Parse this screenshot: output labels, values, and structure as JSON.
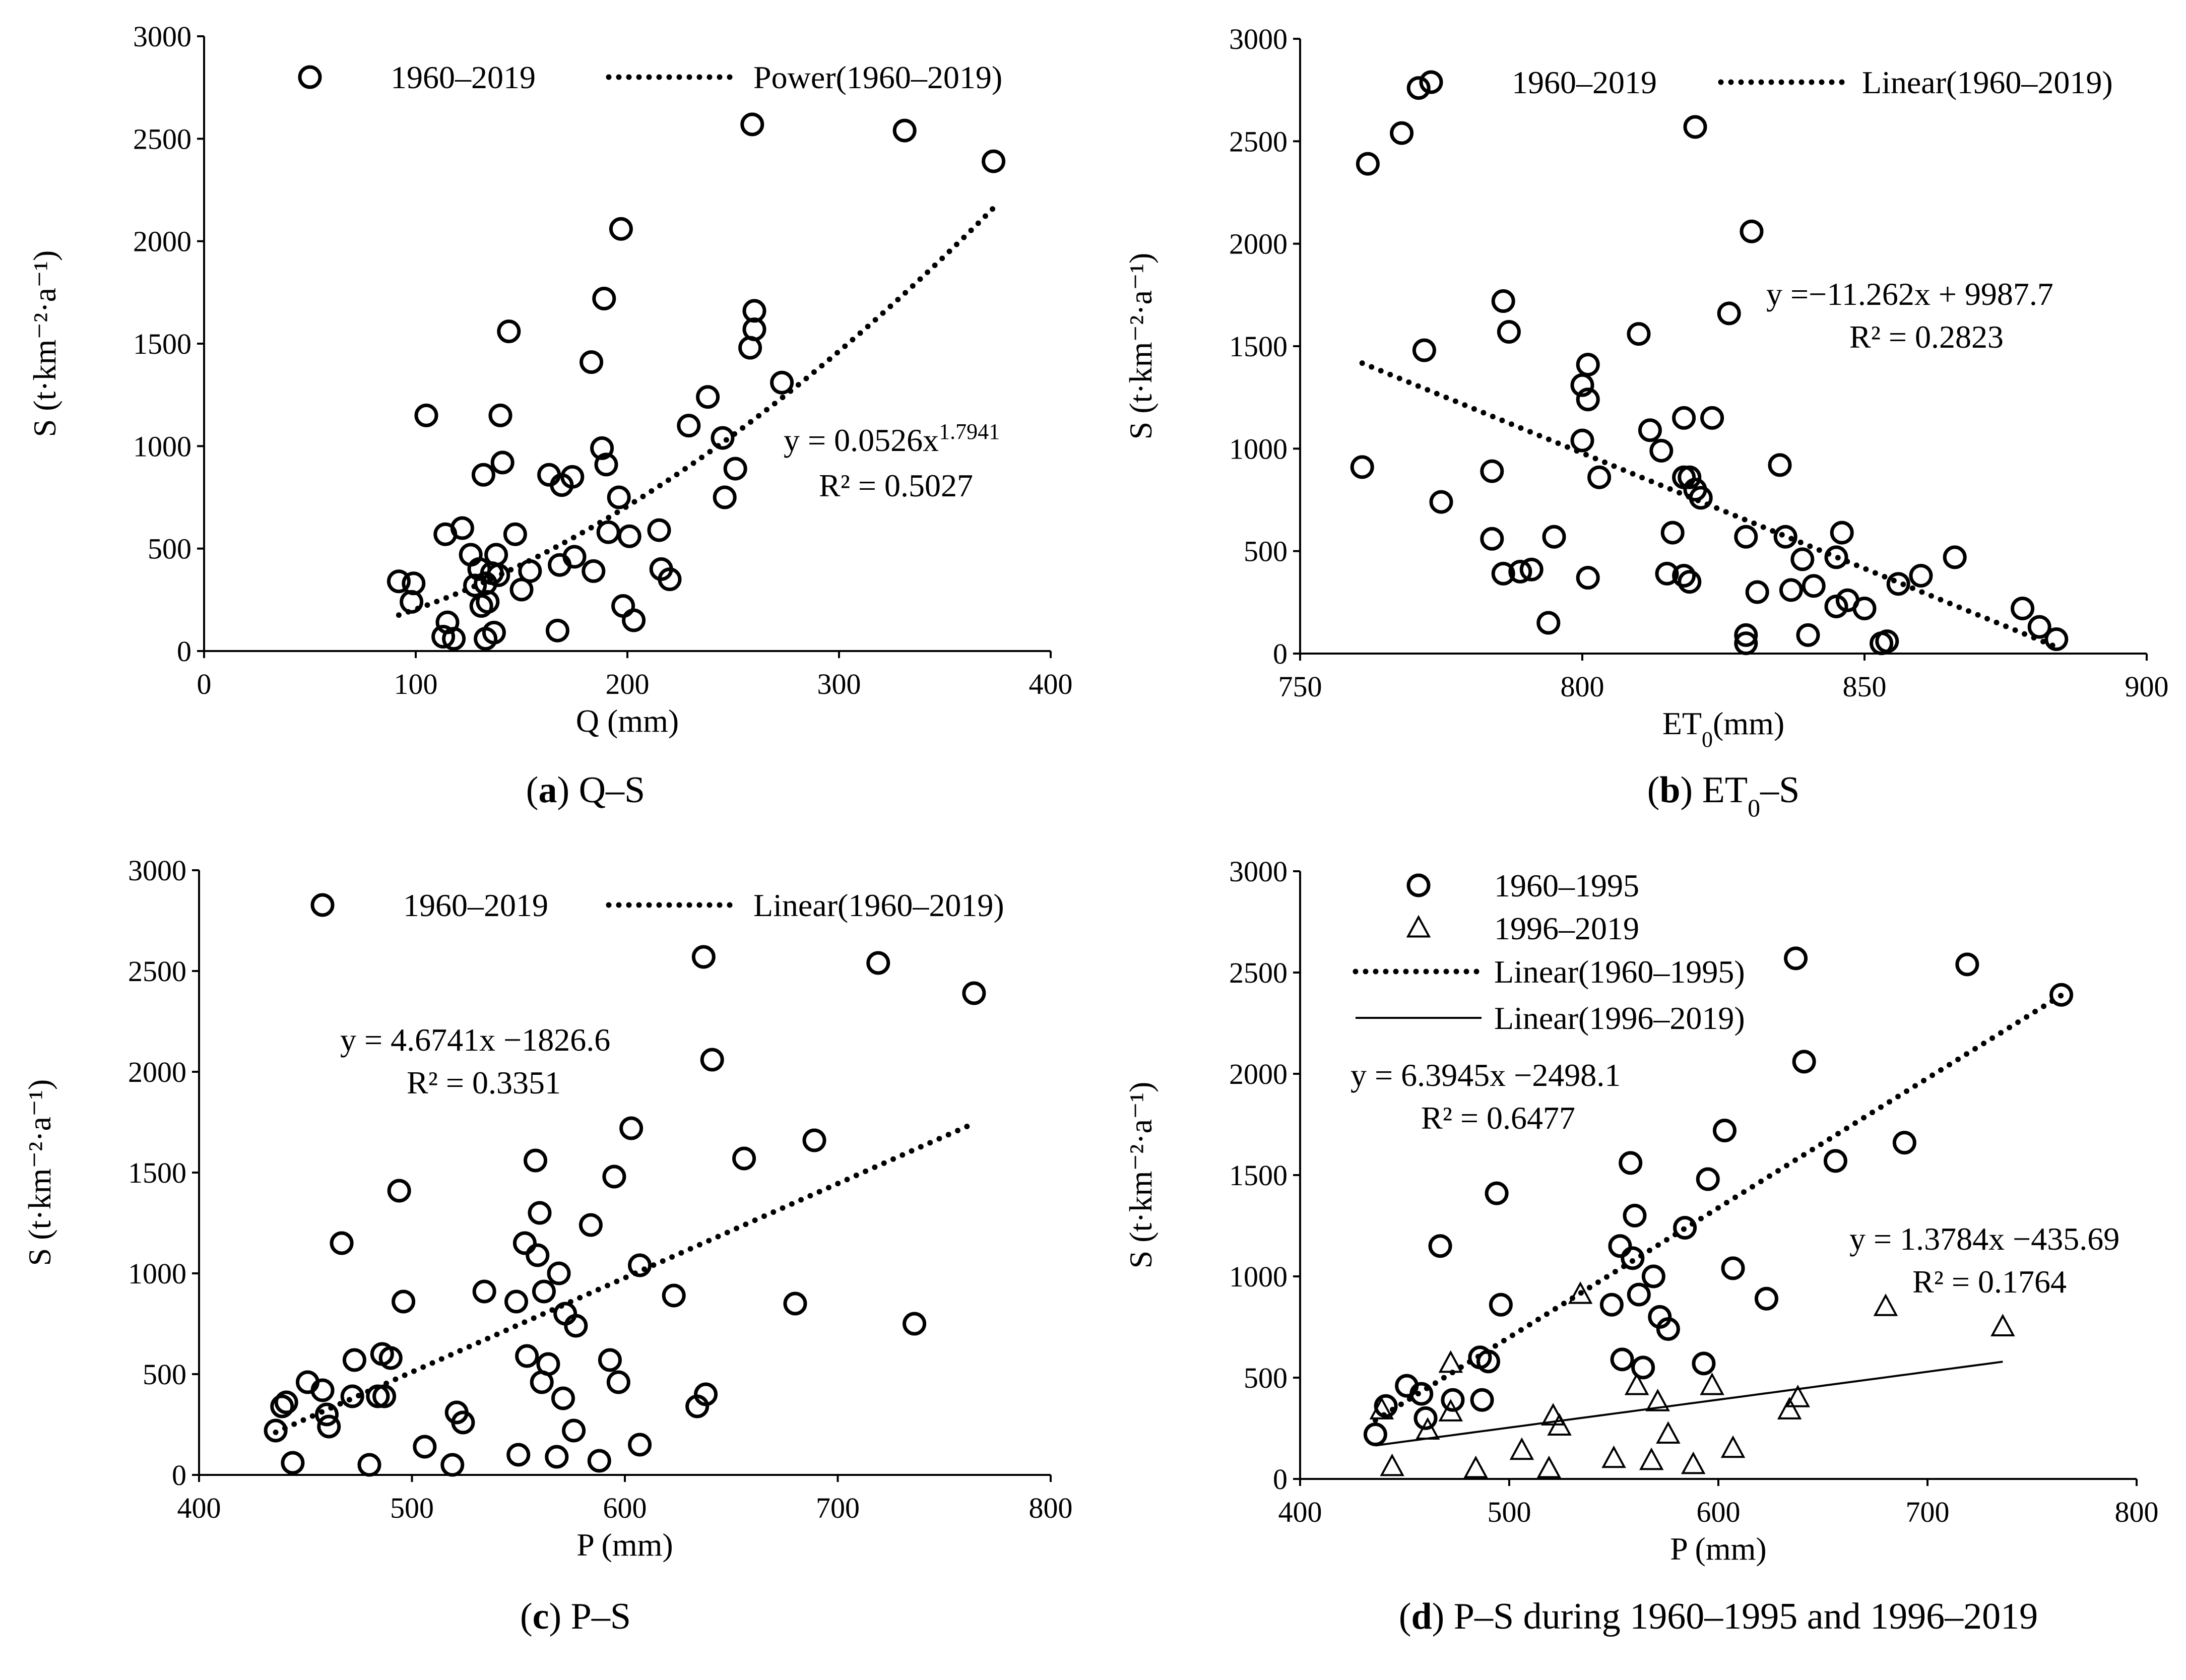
{
  "chart_data": [
    {
      "id": "a",
      "type": "scatter",
      "caption_letter": "(a)",
      "caption_text": "Q–S",
      "xlabel": "Q (mm)",
      "ylabel": "S (t·km⁻²·a⁻¹)",
      "xlim": [
        0,
        400
      ],
      "ylim": [
        0,
        3000
      ],
      "xticks": [
        0,
        100,
        200,
        300,
        400
      ],
      "yticks": [
        0,
        500,
        1000,
        1500,
        2000,
        2500,
        3000
      ],
      "legend": [
        "1960–2019",
        "Power(1960–2019)"
      ],
      "equation": "y = 0.0526x",
      "equation_exponent": "1.7941",
      "r2": "R² = 0.5027",
      "trend": {
        "kind": "power",
        "a": 0.0526,
        "b": 1.7941,
        "x_range": [
          92,
          373
        ]
      },
      "series": [
        {
          "name": "1960–2019",
          "marker": "circle",
          "points": [
            [
              92,
              340
            ],
            [
              98,
              240
            ],
            [
              99,
              330
            ],
            [
              105,
              1150
            ],
            [
              113,
              70
            ],
            [
              114,
              570
            ],
            [
              115,
              140
            ],
            [
              118,
              60
            ],
            [
              122,
              600
            ],
            [
              126,
              470
            ],
            [
              128,
              320
            ],
            [
              130,
              400
            ],
            [
              131,
              220
            ],
            [
              132,
              860
            ],
            [
              133,
              60
            ],
            [
              133,
              330
            ],
            [
              134,
              240
            ],
            [
              136,
              380
            ],
            [
              137,
              90
            ],
            [
              138,
              470
            ],
            [
              139,
              370
            ],
            [
              140,
              1150
            ],
            [
              141,
              920
            ],
            [
              144,
              1560
            ],
            [
              147,
              570
            ],
            [
              150,
              300
            ],
            [
              154,
              390
            ],
            [
              163,
              860
            ],
            [
              167,
              100
            ],
            [
              168,
              420
            ],
            [
              169,
              810
            ],
            [
              174,
              850
            ],
            [
              175,
              460
            ],
            [
              183,
              1410
            ],
            [
              184,
              390
            ],
            [
              188,
              990
            ],
            [
              189,
              1720
            ],
            [
              190,
              910
            ],
            [
              191,
              580
            ],
            [
              196,
              750
            ],
            [
              197,
              2060
            ],
            [
              198,
              220
            ],
            [
              201,
              560
            ],
            [
              203,
              150
            ],
            [
              215,
              590
            ],
            [
              216,
              400
            ],
            [
              220,
              350
            ],
            [
              229,
              1100
            ],
            [
              238,
              1240
            ],
            [
              245,
              1040
            ],
            [
              246,
              750
            ],
            [
              251,
              890
            ],
            [
              258,
              1480
            ],
            [
              259,
              2570
            ],
            [
              260,
              1660
            ],
            [
              260,
              1570
            ],
            [
              273,
              1310
            ],
            [
              331,
              2540
            ],
            [
              373,
              2390
            ]
          ]
        }
      ]
    },
    {
      "id": "b",
      "type": "scatter",
      "caption_letter": "(b)",
      "caption_text": "ET₀–S",
      "xlabel": "ET₀(mm)",
      "ylabel": "S (t·km⁻²·a⁻¹)",
      "xlim": [
        750,
        900
      ],
      "ylim": [
        0,
        3000
      ],
      "xticks": [
        750,
        800,
        850,
        900
      ],
      "yticks": [
        0,
        500,
        1000,
        1500,
        2000,
        2500,
        3000
      ],
      "legend": [
        "1960–2019",
        "Linear(1960–2019)"
      ],
      "equation": "y =−11.262x + 9987.7",
      "r2": "R² = 0.2823",
      "trend": {
        "kind": "linear",
        "slope": -11.262,
        "intercept": 9987.7,
        "x_range": [
          761,
          884
        ]
      },
      "series": [
        {
          "name": "1960–2019",
          "marker": "circle",
          "points": [
            [
              761,
              910
            ],
            [
              762,
              2390
            ],
            [
              768,
              2540
            ],
            [
              771,
              2760
            ],
            [
              772,
              1480
            ],
            [
              775,
              740
            ],
            [
              784,
              890
            ],
            [
              784,
              560
            ],
            [
              786,
              1720
            ],
            [
              787,
              1570
            ],
            [
              786,
              390
            ],
            [
              789,
              400
            ],
            [
              791,
              410
            ],
            [
              794,
              150
            ],
            [
              795,
              570
            ],
            [
              800,
              1040
            ],
            [
              800,
              1310
            ],
            [
              801,
              1240
            ],
            [
              801,
              1410
            ],
            [
              801,
              370
            ],
            [
              803,
              860
            ],
            [
              810,
              1560
            ],
            [
              812,
              1090
            ],
            [
              814,
              990
            ],
            [
              815,
              390
            ],
            [
              816,
              590
            ],
            [
              818,
              860
            ],
            [
              818,
              380
            ],
            [
              818,
              1150
            ],
            [
              819,
              860
            ],
            [
              819,
              350
            ],
            [
              820,
              2570
            ],
            [
              820,
              800
            ],
            [
              821,
              760
            ],
            [
              823,
              1150
            ],
            [
              826,
              1660
            ],
            [
              829,
              90
            ],
            [
              829,
              50
            ],
            [
              829,
              570
            ],
            [
              830,
              2060
            ],
            [
              831,
              300
            ],
            [
              835,
              920
            ],
            [
              836,
              570
            ],
            [
              837,
              310
            ],
            [
              839,
              460
            ],
            [
              840,
              90
            ],
            [
              841,
              330
            ],
            [
              845,
              470
            ],
            [
              845,
              230
            ],
            [
              846,
              590
            ],
            [
              847,
              260
            ],
            [
              850,
              220
            ],
            [
              853,
              50
            ],
            [
              854,
              60
            ],
            [
              856,
              340
            ],
            [
              860,
              380
            ],
            [
              866,
              470
            ],
            [
              878,
              220
            ],
            [
              881,
              130
            ],
            [
              884,
              70
            ]
          ]
        }
      ]
    },
    {
      "id": "c",
      "type": "scatter",
      "caption_letter": "(c)",
      "caption_text": "P–S",
      "xlabel": "P (mm)",
      "ylabel": "S (t·km⁻²·a⁻¹)",
      "xlim": [
        400,
        800
      ],
      "ylim": [
        0,
        3000
      ],
      "xticks": [
        400,
        500,
        600,
        700,
        800
      ],
      "yticks": [
        0,
        500,
        1000,
        1500,
        2000,
        2500,
        3000
      ],
      "legend": [
        "1960–2019",
        "Linear(1960–2019)"
      ],
      "equation": "y = 4.6741x −1826.6",
      "r2": "R² = 0.3351",
      "trend": {
        "kind": "linear",
        "slope": 4.6741,
        "intercept": -1826.6,
        "x_range": [
          436,
          764
        ]
      },
      "series": [
        {
          "name": "1960–2019",
          "marker": "circle",
          "points": [
            [
              436,
              220
            ],
            [
              439,
              340
            ],
            [
              441,
              360
            ],
            [
              444,
              60
            ],
            [
              451,
              460
            ],
            [
              458,
              420
            ],
            [
              460,
              300
            ],
            [
              461,
              240
            ],
            [
              467,
              1150
            ],
            [
              472,
              390
            ],
            [
              473,
              570
            ],
            [
              480,
              50
            ],
            [
              484,
              390
            ],
            [
              486,
              600
            ],
            [
              487,
              390
            ],
            [
              490,
              580
            ],
            [
              494,
              1410
            ],
            [
              496,
              860
            ],
            [
              506,
              140
            ],
            [
              519,
              50
            ],
            [
              521,
              310
            ],
            [
              524,
              260
            ],
            [
              534,
              910
            ],
            [
              549,
              860
            ],
            [
              550,
              100
            ],
            [
              553,
              1150
            ],
            [
              554,
              590
            ],
            [
              558,
              1560
            ],
            [
              559,
              1090
            ],
            [
              560,
              1300
            ],
            [
              561,
              460
            ],
            [
              562,
              910
            ],
            [
              564,
              550
            ],
            [
              568,
              90
            ],
            [
              569,
              1000
            ],
            [
              571,
              380
            ],
            [
              572,
              800
            ],
            [
              576,
              220
            ],
            [
              577,
              740
            ],
            [
              584,
              1240
            ],
            [
              588,
              70
            ],
            [
              593,
              570
            ],
            [
              595,
              1480
            ],
            [
              597,
              460
            ],
            [
              603,
              1720
            ],
            [
              607,
              1040
            ],
            [
              607,
              150
            ],
            [
              623,
              890
            ],
            [
              634,
              340
            ],
            [
              637,
              2570
            ],
            [
              638,
              400
            ],
            [
              641,
              2060
            ],
            [
              656,
              1570
            ],
            [
              680,
              850
            ],
            [
              689,
              1660
            ],
            [
              719,
              2540
            ],
            [
              736,
              750
            ],
            [
              764,
              2390
            ]
          ]
        }
      ]
    },
    {
      "id": "d",
      "type": "scatter",
      "caption_letter": "(d)",
      "caption_text": "P–S during 1960–1995 and 1996–2019",
      "xlabel": "P (mm)",
      "ylabel": "S (t·km⁻²·a⁻¹)",
      "xlim": [
        400,
        800
      ],
      "ylim": [
        0,
        3000
      ],
      "xticks": [
        400,
        500,
        600,
        700,
        800
      ],
      "yticks": [
        0,
        500,
        1000,
        1500,
        2000,
        2500,
        3000
      ],
      "legend": [
        "1960–1995",
        "1996–2019",
        "Linear(1960–1995)",
        "Linear(1996–2019)"
      ],
      "equation": "y = 6.3945x −2498.1",
      "r2": "R² = 0.6477",
      "equation2": "y = 1.3784x −435.69",
      "r2_2": "R² = 0.1764",
      "trend": {
        "kind": "linear",
        "slope": 6.3945,
        "intercept": -2498.1,
        "x_range": [
          436,
          764
        ]
      },
      "trend2": {
        "kind": "linear",
        "slope": 1.3784,
        "intercept": -435.69,
        "x_range": [
          436,
          736
        ]
      },
      "series": [
        {
          "name": "1960–1995",
          "marker": "circle",
          "points": [
            [
              436,
              220
            ],
            [
              441,
              360
            ],
            [
              451,
              460
            ],
            [
              458,
              420
            ],
            [
              460,
              300
            ],
            [
              467,
              1150
            ],
            [
              473,
              390
            ],
            [
              486,
              600
            ],
            [
              487,
              390
            ],
            [
              490,
              580
            ],
            [
              494,
              1410
            ],
            [
              496,
              860
            ],
            [
              549,
              860
            ],
            [
              553,
              1150
            ],
            [
              554,
              590
            ],
            [
              558,
              1560
            ],
            [
              559,
              1090
            ],
            [
              560,
              1300
            ],
            [
              562,
              910
            ],
            [
              564,
              550
            ],
            [
              569,
              1000
            ],
            [
              572,
              800
            ],
            [
              576,
              740
            ],
            [
              584,
              1240
            ],
            [
              593,
              570
            ],
            [
              595,
              1480
            ],
            [
              603,
              1720
            ],
            [
              607,
              1040
            ],
            [
              623,
              890
            ],
            [
              637,
              2570
            ],
            [
              641,
              2060
            ],
            [
              656,
              1570
            ],
            [
              689,
              1660
            ],
            [
              719,
              2540
            ],
            [
              764,
              2390
            ]
          ]
        },
        {
          "name": "1996–2019",
          "marker": "triangle",
          "points": [
            [
              439,
              340
            ],
            [
              444,
              60
            ],
            [
              461,
              240
            ],
            [
              472,
              570
            ],
            [
              472,
              330
            ],
            [
              484,
              50
            ],
            [
              506,
              140
            ],
            [
              519,
              50
            ],
            [
              521,
              310
            ],
            [
              524,
              260
            ],
            [
              534,
              910
            ],
            [
              550,
              100
            ],
            [
              561,
              460
            ],
            [
              568,
              90
            ],
            [
              571,
              380
            ],
            [
              576,
              220
            ],
            [
              588,
              70
            ],
            [
              597,
              460
            ],
            [
              607,
              150
            ],
            [
              634,
              340
            ],
            [
              638,
              400
            ],
            [
              680,
              850
            ],
            [
              736,
              750
            ]
          ]
        }
      ]
    }
  ]
}
